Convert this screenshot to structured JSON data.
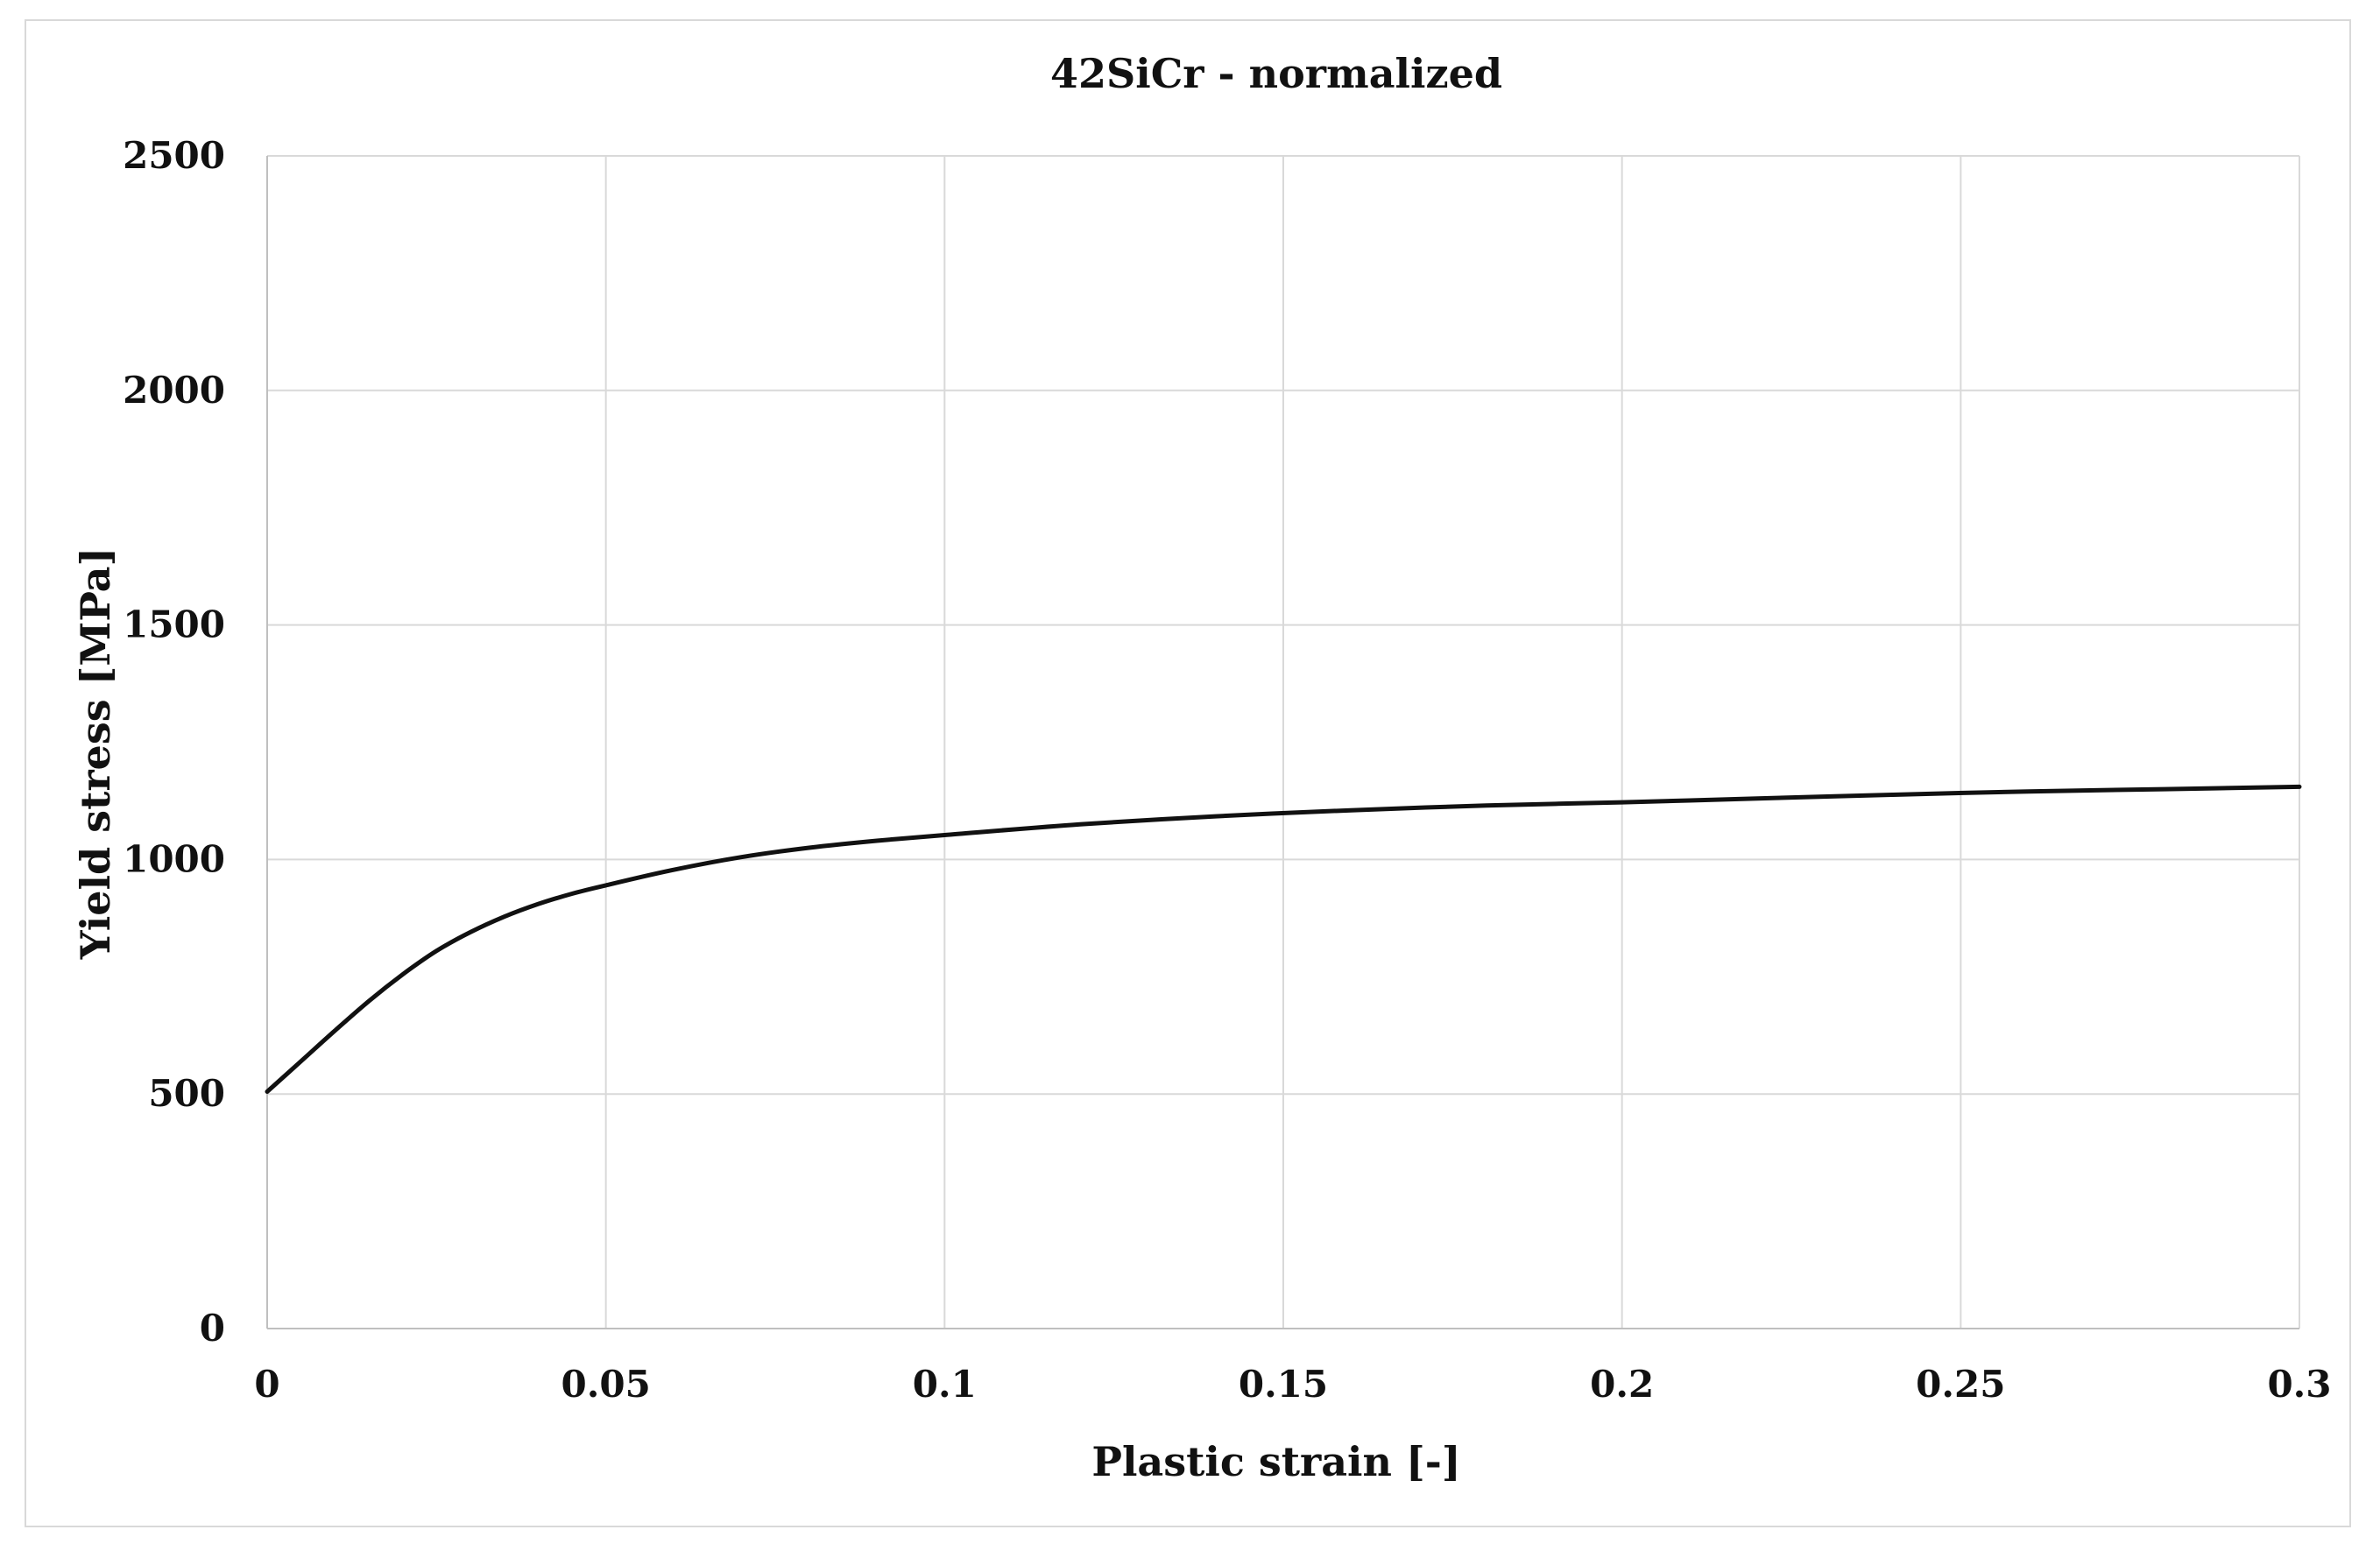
{
  "chart_data": {
    "type": "line",
    "title": "42SiCr - normalized",
    "xlabel": "Plastic strain [-]",
    "ylabel": "Yield stress [MPa]",
    "xlim": [
      0,
      0.3
    ],
    "ylim": [
      0,
      2500
    ],
    "x_ticks": [
      "0",
      "0.05",
      "0.1",
      "0.15",
      "0.2",
      "0.25",
      "0.3"
    ],
    "y_ticks": [
      "0",
      "500",
      "1000",
      "1500",
      "2000",
      "2500"
    ],
    "grid": true,
    "legend": "none",
    "line_color": "#111111",
    "grid_color": "#d9d9d9",
    "series": [
      {
        "x": [
          0,
          0.005,
          0.01,
          0.015,
          0.02,
          0.025,
          0.03,
          0.035,
          0.04,
          0.045,
          0.05,
          0.06,
          0.07,
          0.08,
          0.09,
          0.1,
          0.12,
          0.14,
          0.16,
          0.18,
          0.2,
          0.22,
          0.24,
          0.26,
          0.28,
          0.3
        ],
        "y": [
          505,
          570,
          635,
          698,
          755,
          805,
          845,
          878,
          905,
          927,
          945,
          978,
          1005,
          1025,
          1040,
          1052,
          1075,
          1092,
          1105,
          1115,
          1122,
          1130,
          1138,
          1145,
          1150,
          1155
        ]
      }
    ]
  }
}
